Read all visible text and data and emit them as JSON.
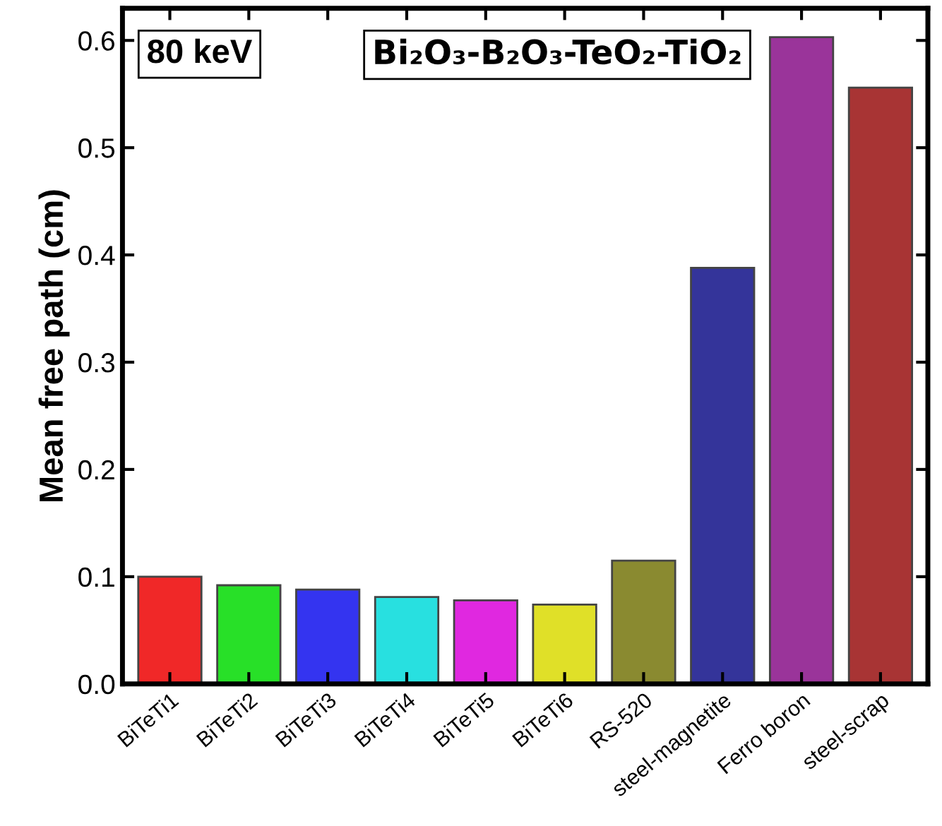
{
  "chart_data": {
    "type": "bar",
    "title": "Bi₂O₃-B₂O₃-TeO₂-TiO₂",
    "ylabel": "Mean free path (cm)",
    "annotations": [
      "80 keV"
    ],
    "categories": [
      "BiTeTi1",
      "BiTeTi2",
      "BiTeTi3",
      "BiTeTi4",
      "BiTeTi5",
      "BiTeTi6",
      "RS-520",
      "steel-magnetite",
      "Ferro boron",
      "steel-scrap"
    ],
    "values": [
      0.1,
      0.092,
      0.088,
      0.081,
      0.078,
      0.074,
      0.115,
      0.388,
      0.603,
      0.556
    ],
    "colors": [
      "#f02828",
      "#28e028",
      "#3434f0",
      "#28e0e0",
      "#e028e0",
      "#e0e028",
      "#8a8a30",
      "#34349a",
      "#9a349a",
      "#a83434"
    ],
    "ylim": [
      0,
      0.63
    ],
    "yticks": [
      {
        "value": 0,
        "label": "0.0"
      },
      0.1,
      0.2,
      0.3,
      0.4,
      0.5,
      0.6
    ],
    "grid": false,
    "legend": false
  }
}
